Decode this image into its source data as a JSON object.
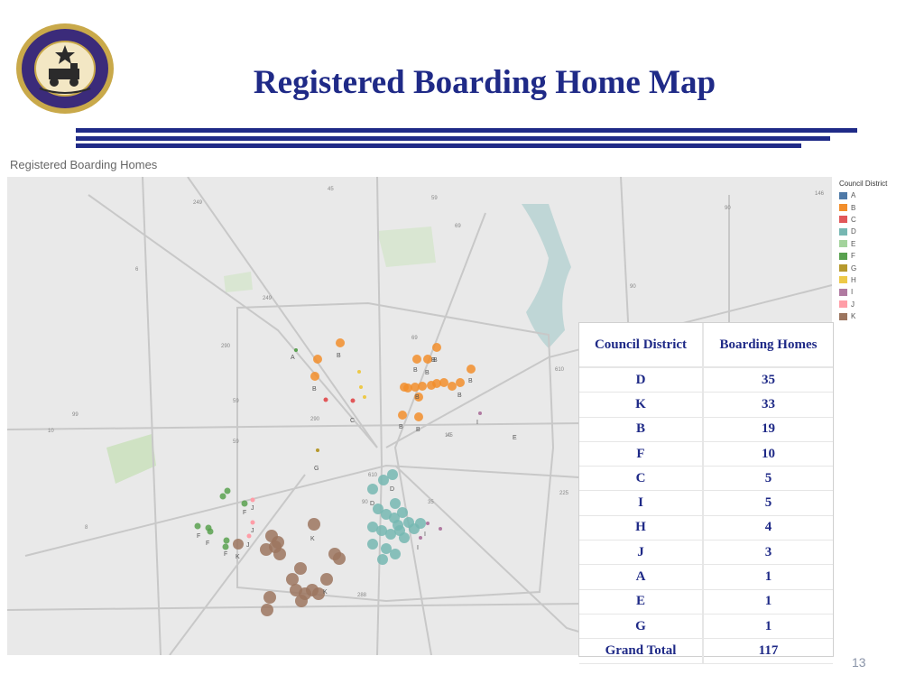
{
  "title": "Registered Boarding Home Map",
  "seal": {
    "text_top": "CITY OF HOUSTON",
    "text_bottom": "TEXAS"
  },
  "map": {
    "caption": "Registered Boarding Homes",
    "legend_title": "Council District",
    "legend": [
      {
        "label": "A",
        "color": "#4e79a7"
      },
      {
        "label": "B",
        "color": "#f28e2b"
      },
      {
        "label": "C",
        "color": "#e15759"
      },
      {
        "label": "D",
        "color": "#76b7b2"
      },
      {
        "label": "E",
        "color": "#a3d39c"
      },
      {
        "label": "F",
        "color": "#59a14f"
      },
      {
        "label": "G",
        "color": "#b6992d"
      },
      {
        "label": "H",
        "color": "#edc948"
      },
      {
        "label": "I",
        "color": "#b07aa1"
      },
      {
        "label": "J",
        "color": "#ff9da7"
      },
      {
        "label": "K",
        "color": "#9c755f"
      }
    ],
    "highway_labels": [
      "249",
      "45",
      "69",
      "59",
      "90",
      "146",
      "6",
      "249",
      "290",
      "290",
      "99",
      "59",
      "69",
      "610",
      "610",
      "45",
      "225",
      "35",
      "288",
      "90",
      "90",
      "59",
      "10",
      "10",
      "8"
    ],
    "point_labels": [
      "A",
      "B",
      "B",
      "B",
      "B",
      "B",
      "B",
      "B",
      "B",
      "B",
      "B",
      "B",
      "C",
      "D",
      "D",
      "E",
      "F",
      "F",
      "F",
      "F",
      "G",
      "I",
      "I",
      "I",
      "J",
      "J",
      "J",
      "K",
      "K",
      "K"
    ]
  },
  "table": {
    "headers": [
      "Council District",
      "Boarding Homes"
    ],
    "rows": [
      {
        "district": "D",
        "homes": "35"
      },
      {
        "district": "K",
        "homes": "33"
      },
      {
        "district": "B",
        "homes": "19"
      },
      {
        "district": "F",
        "homes": "10"
      },
      {
        "district": "C",
        "homes": "5"
      },
      {
        "district": "I",
        "homes": "5"
      },
      {
        "district": "H",
        "homes": "4"
      },
      {
        "district": "J",
        "homes": "3"
      },
      {
        "district": "A",
        "homes": "1"
      },
      {
        "district": "E",
        "homes": "1"
      },
      {
        "district": "G",
        "homes": "1"
      }
    ],
    "total_label": "Grand Total",
    "total_value": "117"
  },
  "page_number": "13"
}
